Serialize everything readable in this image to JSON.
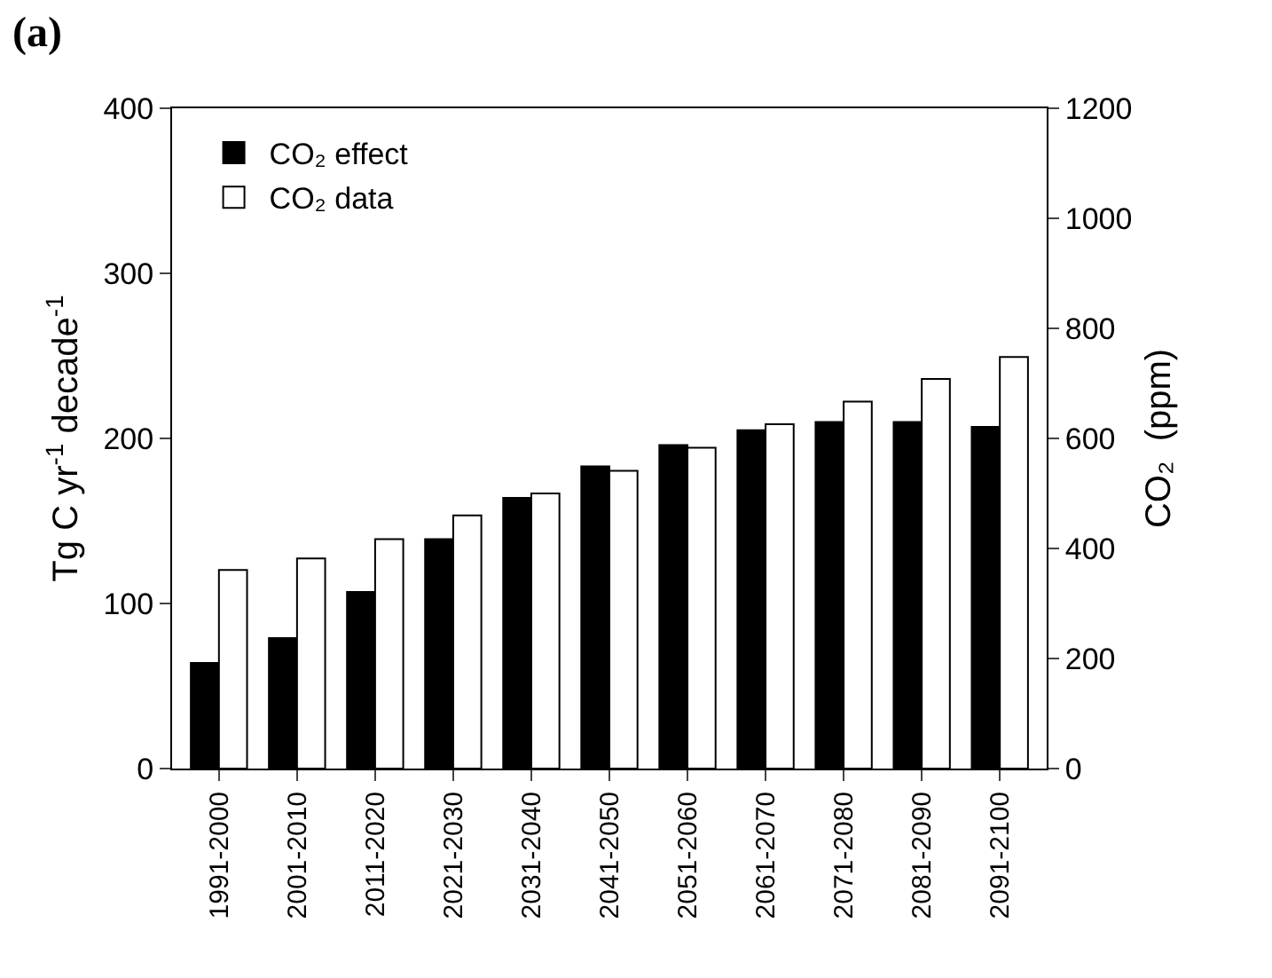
{
  "chart_data": {
    "type": "bar",
    "annotations": [
      "(a)"
    ],
    "ylabel": "Tg C yr$^{-1}$ decade$^{-1}$",
    "y2label": "CO₂  (ppm)",
    "categories": [
      "1991-2000",
      "2001-2010",
      "2011-2020",
      "2021-2030",
      "2031-2040",
      "2041-2050",
      "2051-2060",
      "2061-2070",
      "2071-2080",
      "2081-2090",
      "2091-2100"
    ],
    "series": [
      {
        "name": "CO₂ effect",
        "color": "#000000",
        "values": [
          64,
          79,
          107,
          139,
          164,
          183,
          196,
          205,
          210,
          210,
          207
        ]
      },
      {
        "name": "CO₂ data",
        "color": "#ffffff",
        "axis": "y2",
        "values": [
          361,
          382,
          417,
          460,
          500,
          541,
          583,
          626,
          667,
          708,
          748
        ]
      }
    ],
    "ylim": [
      0,
      400
    ],
    "yticks": [
      0,
      100,
      200,
      300,
      400
    ],
    "y2lim": [
      0,
      1200
    ],
    "y2ticks": [
      0,
      200,
      400,
      600,
      800,
      1000,
      1200
    ],
    "grid": false,
    "legend": "top left"
  }
}
